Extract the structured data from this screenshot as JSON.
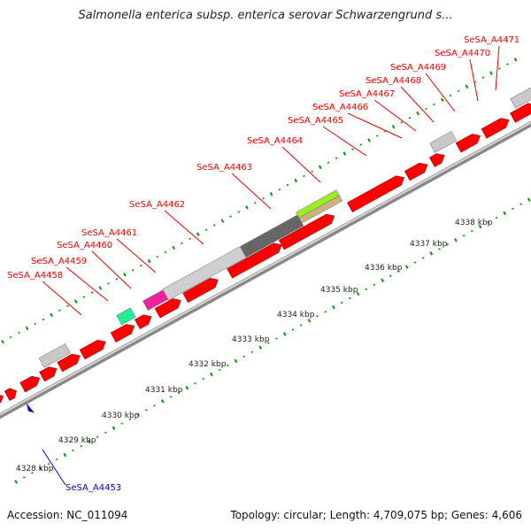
{
  "header": {
    "title": "Salmonella enterica subsp. enterica serovar Schwarzengrund s..."
  },
  "footer": {
    "accession": "Accession: NC_011094",
    "summary": "Topology: circular; Length: 4,709,075 bp; Genes: 4,606"
  },
  "colors": {
    "gene": "#ff0000",
    "pseudo_gray": "#c8c8c8",
    "dark_gray": "#666666",
    "green": "#22ee99",
    "magenta": "#ee2299",
    "lime": "#99ee22",
    "tan": "#c8b478",
    "backbone": "#999999",
    "tick": "#009900",
    "label_red": "#ee0000",
    "label_blue": "#0000cc"
  },
  "scale": {
    "unit": "kbp",
    "ticks": [
      {
        "value": 4328,
        "label": "4328 kbp"
      },
      {
        "value": 4329,
        "label": "4329 kbp"
      },
      {
        "value": 4330,
        "label": "4330 kbp"
      },
      {
        "value": 4331,
        "label": "4331 kbp"
      },
      {
        "value": 4332,
        "label": "4332 kbp"
      },
      {
        "value": 4333,
        "label": "4333 kbp"
      },
      {
        "value": 4334,
        "label": "4334 kbp"
      },
      {
        "value": 4335,
        "label": "4335 kbp"
      },
      {
        "value": 4336,
        "label": "4336 kbp"
      },
      {
        "value": 4337,
        "label": "4337 kbp"
      },
      {
        "value": 4338,
        "label": "4338 kbp"
      }
    ]
  },
  "genes": [
    {
      "id": "SeSA_A4453",
      "label": "SeSA_A4453",
      "strand": "-",
      "color": "blue"
    },
    {
      "id": "SeSA_A4458",
      "label": "SeSA_A4458",
      "strand": "+",
      "color": "red"
    },
    {
      "id": "SeSA_A4459",
      "label": "SeSA_A4459",
      "strand": "+",
      "color": "red"
    },
    {
      "id": "SeSA_A4460",
      "label": "SeSA_A4460",
      "strand": "+",
      "color": "red"
    },
    {
      "id": "SeSA_A4461",
      "label": "SeSA_A4461",
      "strand": "+",
      "color": "red"
    },
    {
      "id": "SeSA_A4462",
      "label": "SeSA_A4462",
      "strand": "+",
      "color": "red"
    },
    {
      "id": "SeSA_A4463",
      "label": "SeSA_A4463",
      "strand": "+",
      "color": "red"
    },
    {
      "id": "SeSA_A4464",
      "label": "SeSA_A4464",
      "strand": "+",
      "color": "red"
    },
    {
      "id": "SeSA_A4465",
      "label": "SeSA_A4465",
      "strand": "+",
      "color": "red"
    },
    {
      "id": "SeSA_A4466",
      "label": "SeSA_A4466",
      "strand": "+",
      "color": "red"
    },
    {
      "id": "SeSA_A4467",
      "label": "SeSA_A4467",
      "strand": "+",
      "color": "red"
    },
    {
      "id": "SeSA_A4468",
      "label": "SeSA_A4468",
      "strand": "+",
      "color": "red"
    },
    {
      "id": "SeSA_A4469",
      "label": "SeSA_A4469",
      "strand": "+",
      "color": "red"
    },
    {
      "id": "SeSA_A4470",
      "label": "SeSA_A4470",
      "strand": "+",
      "color": "red"
    },
    {
      "id": "SeSA_A4471",
      "label": "SeSA_A4471",
      "strand": "+",
      "color": "red"
    }
  ]
}
